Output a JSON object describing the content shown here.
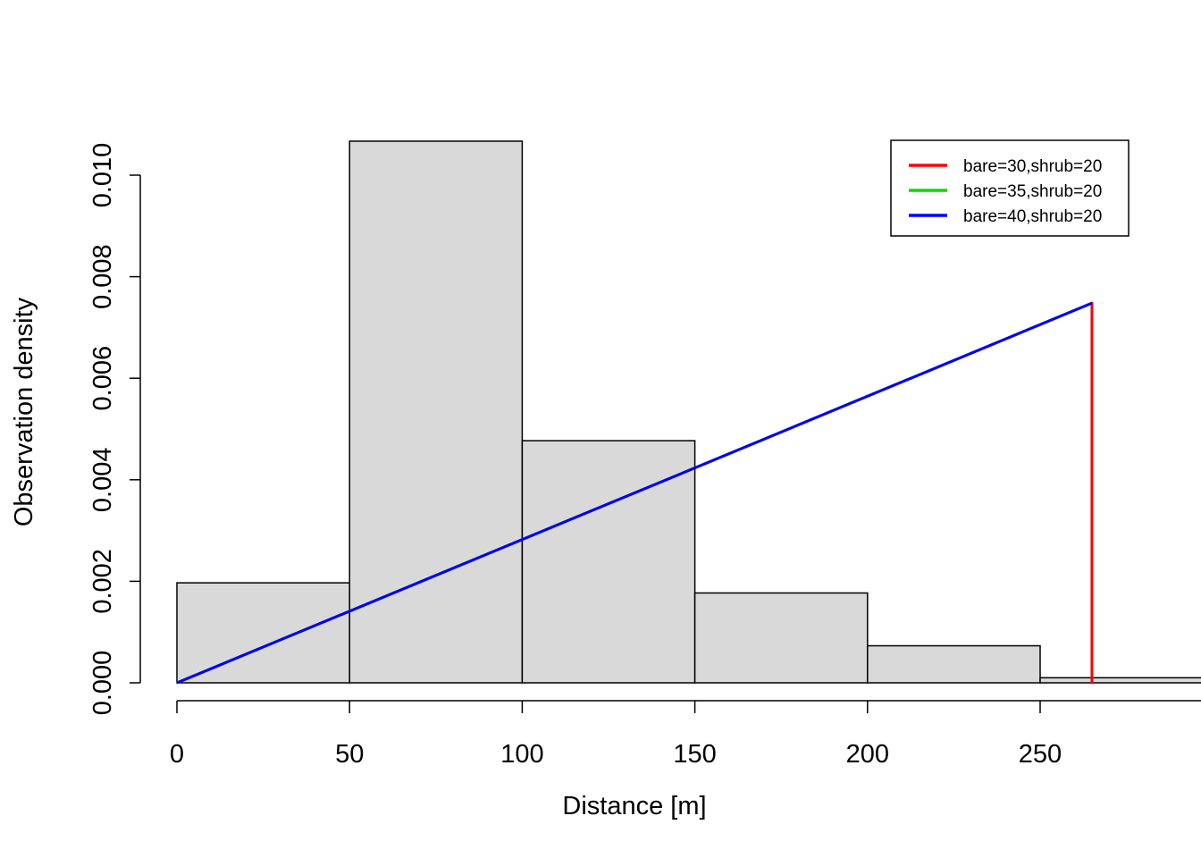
{
  "chart_data": {
    "type": "bar",
    "subtype": "histogram-with-curves",
    "xlabel": "Distance [m]",
    "ylabel": "Observation density",
    "xlim": [
      0,
      295
    ],
    "ylim": [
      0,
      0.0107
    ],
    "x_ticks": [
      "0",
      "50",
      "100",
      "150",
      "200",
      "250"
    ],
    "x_tick_values": [
      0,
      50,
      100,
      150,
      200,
      250
    ],
    "y_ticks": [
      "0.000",
      "0.002",
      "0.004",
      "0.006",
      "0.008",
      "0.010"
    ],
    "y_tick_values": [
      0,
      0.002,
      0.004,
      0.006,
      0.008,
      0.01
    ],
    "bins": [
      {
        "from": 0,
        "to": 50,
        "density": 0.00197
      },
      {
        "from": 50,
        "to": 100,
        "density": 0.01067
      },
      {
        "from": 100,
        "to": 150,
        "density": 0.00477
      },
      {
        "from": 150,
        "to": 200,
        "density": 0.00177
      },
      {
        "from": 200,
        "to": 250,
        "density": 0.00073
      },
      {
        "from": 250,
        "to": 300,
        "density": 0.0001
      }
    ],
    "bar_fill": "#d9d9d9",
    "series": [
      {
        "name": "bare=30,shrub=20",
        "color": "#ff0000",
        "x": [
          0,
          265,
          265
        ],
        "y": [
          0,
          0.00748,
          0
        ]
      },
      {
        "name": "bare=35,shrub=20",
        "color": "#00dd00",
        "x": [
          0,
          265
        ],
        "y": [
          0,
          0.00748
        ]
      },
      {
        "name": "bare=40,shrub=20",
        "color": "#0000ff",
        "x": [
          0,
          265
        ],
        "y": [
          0,
          0.00748
        ]
      }
    ],
    "legend_position": "top-right",
    "grid": false
  }
}
